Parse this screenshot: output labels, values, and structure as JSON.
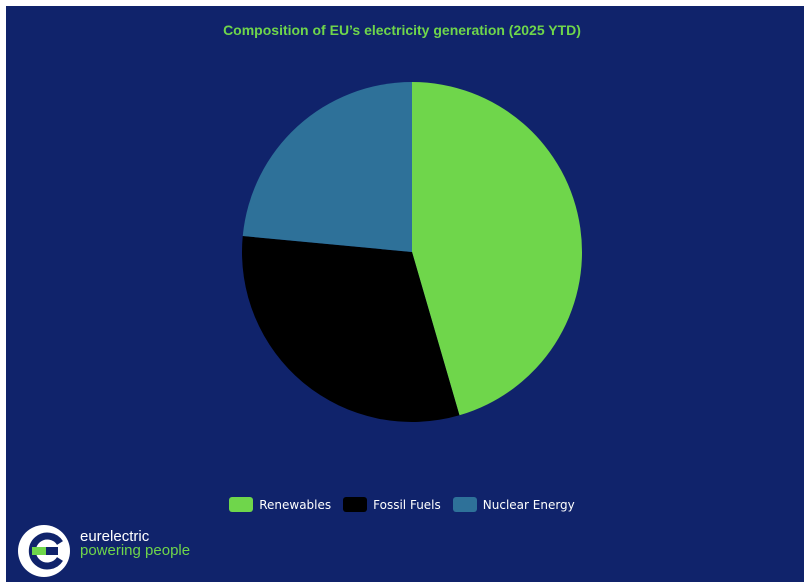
{
  "chart_data": {
    "type": "pie",
    "title": "Composition of EU’s electricity generation (2025 YTD)",
    "categories": [
      "Renewables",
      "Fossil Fuels",
      "Nuclear Energy"
    ],
    "values": [
      45.5,
      31.0,
      23.5
    ],
    "colors": [
      "#6fd64b",
      "#000000",
      "#2e7199"
    ],
    "start_angle_deg": 0,
    "direction": "clockwise",
    "legend_position": "bottom"
  },
  "colors": {
    "background": "#10236b",
    "title": "#6fd64b",
    "legend_text": "#ffffff"
  },
  "logo": {
    "name": "eurelectric",
    "tagline": "powering people",
    "icon": "eurelectric-e-logo-icon"
  }
}
